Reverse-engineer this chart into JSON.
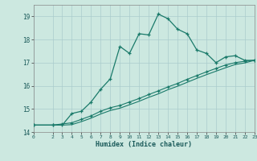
{
  "xlabel": "Humidex (Indice chaleur)",
  "bg_color": "#cce8e0",
  "grid_color": "#aacccc",
  "line_color": "#1a7a6a",
  "xlim": [
    0,
    23
  ],
  "ylim": [
    14,
    19.5
  ],
  "yticks": [
    14,
    15,
    16,
    17,
    18,
    19
  ],
  "xticks": [
    0,
    2,
    3,
    4,
    5,
    6,
    7,
    8,
    9,
    10,
    11,
    12,
    13,
    14,
    15,
    16,
    17,
    18,
    19,
    20,
    21,
    22,
    23
  ],
  "curve1_x": [
    0,
    2,
    3,
    4,
    5,
    6,
    7,
    8,
    9,
    10,
    11,
    12,
    13,
    14,
    15,
    16,
    17,
    18,
    19,
    20,
    21,
    22,
    23
  ],
  "curve1_y": [
    14.3,
    14.3,
    14.3,
    14.8,
    14.9,
    15.3,
    15.85,
    16.3,
    17.7,
    17.4,
    18.25,
    18.2,
    19.1,
    18.9,
    18.45,
    18.25,
    17.55,
    17.4,
    17.0,
    17.25,
    17.3,
    17.1,
    17.1
  ],
  "curve2_x": [
    0,
    2,
    3,
    4,
    5,
    6,
    7,
    8,
    9,
    10,
    11,
    12,
    13,
    14,
    15,
    16,
    17,
    18,
    19,
    20,
    21,
    22,
    23
  ],
  "curve2_y": [
    14.3,
    14.3,
    14.35,
    14.4,
    14.55,
    14.7,
    14.9,
    15.05,
    15.15,
    15.3,
    15.45,
    15.62,
    15.78,
    15.95,
    16.1,
    16.28,
    16.44,
    16.6,
    16.75,
    16.9,
    17.0,
    17.06,
    17.1
  ],
  "curve3_x": [
    0,
    2,
    3,
    4,
    5,
    6,
    7,
    8,
    9,
    10,
    11,
    12,
    13,
    14,
    15,
    16,
    17,
    18,
    19,
    20,
    21,
    22,
    23
  ],
  "curve3_y": [
    14.3,
    14.3,
    14.3,
    14.32,
    14.45,
    14.6,
    14.78,
    14.93,
    15.03,
    15.18,
    15.33,
    15.5,
    15.65,
    15.83,
    15.98,
    16.15,
    16.32,
    16.48,
    16.63,
    16.78,
    16.92,
    16.99,
    17.1
  ]
}
